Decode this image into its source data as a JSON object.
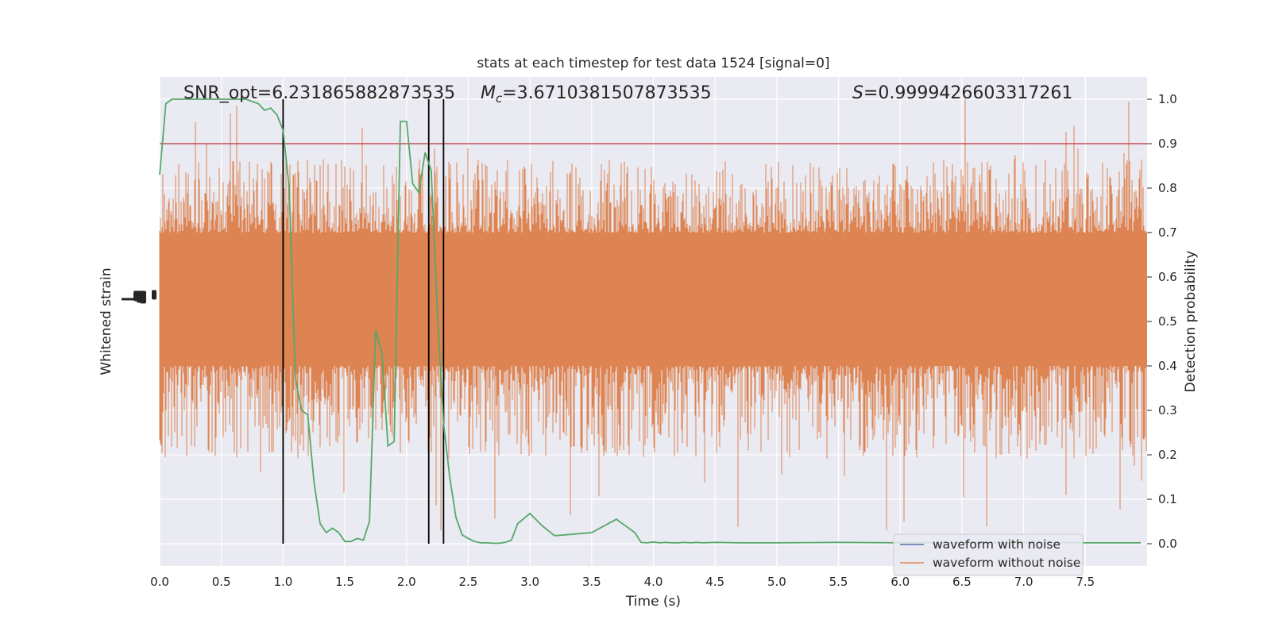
{
  "chart_data": {
    "type": "line",
    "title": "stats at each timestep for test data 1524 [signal=0]",
    "xlabel": "Time (s)",
    "ylabel_left": "Whitened strain",
    "ylabel_right": "Detection probability",
    "xlim": [
      0,
      8
    ],
    "ylim_right": [
      -0.05,
      1.05
    ],
    "x_ticks": [
      "0.0",
      "0.5",
      "1.0",
      "1.5",
      "2.0",
      "2.5",
      "3.0",
      "3.5",
      "4.0",
      "4.5",
      "5.0",
      "5.5",
      "6.0",
      "6.5",
      "7.0",
      "7.5"
    ],
    "y_ticks_right": [
      "0.0",
      "0.1",
      "0.2",
      "0.3",
      "0.4",
      "0.5",
      "0.6",
      "0.7",
      "0.8",
      "0.9",
      "1.0"
    ],
    "grid": true,
    "legend_position": "lower-right",
    "annotations": {
      "snr": "SNR_opt=6.231865882873535",
      "mc_symbol": "M",
      "mc_sub": "c",
      "mc_value": "=3.6710381507873535",
      "s_symbol": "S",
      "s_value": "=0.9999426603317261"
    },
    "threshold": {
      "value": 0.9,
      "color": "#c44e52"
    },
    "vertical_lines_x": [
      1.0,
      2.18,
      2.3
    ],
    "series": [
      {
        "name": "waveform with noise",
        "color": "#4c72b0",
        "values": []
      },
      {
        "name": "waveform without noise",
        "color": "#dd8452",
        "band": [
          0.4,
          0.7
        ],
        "extreme_range": [
          0.02,
          1.0
        ]
      },
      {
        "color": "#55a868",
        "x": [
          0.0,
          0.05,
          0.1,
          0.15,
          0.2,
          0.3,
          0.4,
          0.5,
          0.6,
          0.7,
          0.8,
          0.85,
          0.9,
          0.95,
          1.0,
          1.05,
          1.1,
          1.15,
          1.2,
          1.25,
          1.3,
          1.35,
          1.4,
          1.45,
          1.5,
          1.55,
          1.6,
          1.65,
          1.7,
          1.75,
          1.8,
          1.85,
          1.9,
          1.95,
          2.0,
          2.05,
          2.1,
          2.15,
          2.2,
          2.25,
          2.3,
          2.35,
          2.4,
          2.45,
          2.5,
          2.55,
          2.6,
          2.65,
          2.7,
          2.75,
          2.8,
          2.85,
          2.9,
          3.0,
          3.1,
          3.2,
          3.5,
          3.7,
          3.85,
          3.9,
          3.95,
          4.0,
          4.05,
          4.1,
          4.15,
          4.2,
          4.25,
          4.3,
          4.35,
          4.4,
          4.5,
          4.7,
          5.0,
          5.5,
          6.0,
          6.5,
          7.0,
          7.5,
          7.95
        ],
        "values": [
          0.83,
          0.99,
          1.0,
          1.0,
          1.0,
          1.0,
          1.0,
          1.0,
          1.0,
          1.0,
          0.99,
          0.975,
          0.98,
          0.965,
          0.93,
          0.8,
          0.37,
          0.3,
          0.29,
          0.14,
          0.045,
          0.025,
          0.035,
          0.025,
          0.005,
          0.005,
          0.012,
          0.008,
          0.05,
          0.48,
          0.43,
          0.22,
          0.23,
          0.95,
          0.95,
          0.81,
          0.79,
          0.88,
          0.84,
          0.52,
          0.27,
          0.15,
          0.06,
          0.02,
          0.012,
          0.005,
          0.002,
          0.002,
          0.001,
          0.001,
          0.003,
          0.008,
          0.045,
          0.068,
          0.04,
          0.018,
          0.025,
          0.055,
          0.025,
          0.003,
          0.002,
          0.004,
          0.002,
          0.003,
          0.002,
          0.002,
          0.003,
          0.002,
          0.003,
          0.002,
          0.003,
          0.002,
          0.002,
          0.003,
          0.002,
          0.002,
          0.003,
          0.002,
          0.002
        ]
      }
    ]
  }
}
